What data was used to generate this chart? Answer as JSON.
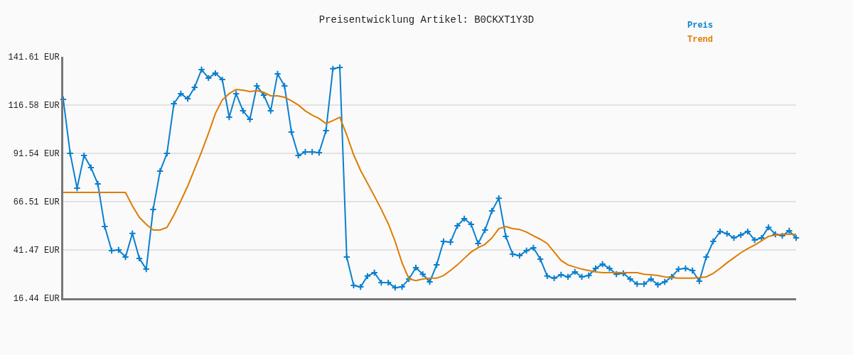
{
  "chart_data": {
    "type": "line",
    "title": "Preisentwicklung Artikel: B0CKXT1Y3D",
    "categories": [
      null,
      null,
      null,
      null,
      null,
      null,
      null,
      null,
      null,
      null,
      null,
      null,
      null,
      null,
      null,
      null,
      null,
      null,
      null,
      null,
      null,
      null,
      null,
      null,
      null,
      null,
      null,
      null,
      null,
      null,
      null,
      null,
      null,
      null,
      null,
      null,
      null,
      null,
      null,
      null,
      null,
      null,
      null,
      null,
      null,
      null,
      null,
      null,
      null,
      null,
      null,
      null,
      null,
      null,
      null,
      null,
      null,
      null,
      null,
      null,
      null,
      null,
      null,
      null,
      null,
      null,
      null,
      null,
      null,
      null,
      null,
      null,
      null,
      null,
      null,
      null,
      null,
      null,
      null,
      null,
      null,
      null,
      null,
      null,
      null,
      null,
      null,
      null,
      null,
      null,
      null,
      null,
      null,
      null,
      null,
      null,
      null,
      null,
      null,
      null,
      null,
      null,
      null,
      null,
      null,
      null,
      null
    ],
    "series": [
      {
        "name": "Preis",
        "color": "#0a7fcf",
        "marker": "cross",
        "values": [
          119.5,
          91.5,
          73.5,
          90.4,
          84.2,
          75.7,
          53.6,
          41.1,
          41.5,
          37.8,
          50.0,
          37.1,
          31.5,
          62.5,
          82.3,
          91.5,
          117.3,
          122.5,
          119.9,
          125.8,
          135.0,
          130.6,
          133.1,
          129.8,
          110.3,
          122.5,
          113.6,
          109.2,
          126.5,
          121.7,
          113.6,
          132.8,
          126.5,
          102.6,
          90.4,
          92.3,
          92.3,
          91.9,
          103.3,
          135.4,
          136.1,
          37.8,
          23.1,
          22.3,
          27.9,
          29.7,
          24.5,
          24.5,
          21.9,
          22.3,
          26.4,
          32.3,
          28.9,
          24.9,
          33.7,
          45.9,
          45.5,
          54.0,
          57.7,
          54.7,
          44.8,
          51.8,
          61.7,
          68.3,
          48.5,
          39.3,
          38.5,
          41.1,
          42.6,
          36.7,
          27.9,
          26.8,
          28.6,
          27.5,
          30.1,
          27.5,
          28.2,
          31.9,
          34.1,
          31.9,
          28.9,
          29.3,
          26.4,
          23.8,
          23.8,
          26.4,
          23.4,
          24.9,
          27.5,
          31.5,
          31.9,
          30.8,
          25.3,
          37.8,
          45.9,
          51.0,
          49.9,
          47.7,
          49.2,
          51.0,
          46.6,
          47.7,
          53.2,
          49.6,
          48.8,
          51.4,
          47.7
        ]
      },
      {
        "name": "Trend",
        "color": "#e07b00",
        "marker": "none",
        "values": [
          71.3,
          71.3,
          71.3,
          71.3,
          71.3,
          71.3,
          71.3,
          71.3,
          71.3,
          71.3,
          64.3,
          58.4,
          54.7,
          51.8,
          51.8,
          53.2,
          59.5,
          66.9,
          74.6,
          83.4,
          92.3,
          101.9,
          112.2,
          119.2,
          122.5,
          124.7,
          124.3,
          123.6,
          124.0,
          123.2,
          121.4,
          121.4,
          120.6,
          118.8,
          116.6,
          113.6,
          111.4,
          109.6,
          107.0,
          108.5,
          110.3,
          101.1,
          90.8,
          82.7,
          76.1,
          69.4,
          62.5,
          55.1,
          45.9,
          34.8,
          26.4,
          25.6,
          26.4,
          26.8,
          26.8,
          28.2,
          30.8,
          33.7,
          37.1,
          40.4,
          42.6,
          44.4,
          47.7,
          52.5,
          53.6,
          52.5,
          52.1,
          50.7,
          48.8,
          47.0,
          44.8,
          40.4,
          36.0,
          33.7,
          32.6,
          31.5,
          30.8,
          30.1,
          29.7,
          29.7,
          29.7,
          29.7,
          29.7,
          29.7,
          28.9,
          28.6,
          28.2,
          27.5,
          27.1,
          26.8,
          26.8,
          26.8,
          27.1,
          27.5,
          29.3,
          31.9,
          34.8,
          37.4,
          40.0,
          42.2,
          44.0,
          46.2,
          48.5,
          49.2,
          49.6,
          49.6,
          49.6
        ]
      }
    ],
    "ylim": [
      16.44,
      141.61
    ],
    "yticks": [
      {
        "value": 16.44,
        "label": "16.44 EUR"
      },
      {
        "value": 41.47,
        "label": "41.47 EUR"
      },
      {
        "value": 66.51,
        "label": "66.51 EUR"
      },
      {
        "value": 91.54,
        "label": "91.54 EUR"
      },
      {
        "value": 116.58,
        "label": "116.58 EUR"
      },
      {
        "value": 141.61,
        "label": "141.61 EUR"
      }
    ],
    "tick_labels": "y",
    "grid": "y",
    "legend": "top right",
    "line_style": "solid"
  }
}
